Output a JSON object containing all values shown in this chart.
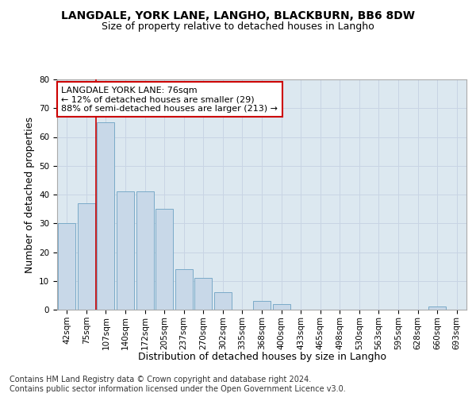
{
  "title": "LANGDALE, YORK LANE, LANGHO, BLACKBURN, BB6 8DW",
  "subtitle": "Size of property relative to detached houses in Langho",
  "xlabel": "Distribution of detached houses by size in Langho",
  "ylabel": "Number of detached properties",
  "categories": [
    "42sqm",
    "75sqm",
    "107sqm",
    "140sqm",
    "172sqm",
    "205sqm",
    "237sqm",
    "270sqm",
    "302sqm",
    "335sqm",
    "368sqm",
    "400sqm",
    "433sqm",
    "465sqm",
    "498sqm",
    "530sqm",
    "563sqm",
    "595sqm",
    "628sqm",
    "660sqm",
    "693sqm"
  ],
  "values": [
    30,
    37,
    65,
    41,
    41,
    35,
    14,
    11,
    6,
    0,
    3,
    2,
    0,
    0,
    0,
    0,
    0,
    0,
    0,
    1,
    0
  ],
  "bar_color": "#c8d8e8",
  "bar_edge_color": "#7aaac8",
  "vline_x_index": 1.5,
  "vline_color": "#cc0000",
  "annotation_text": "LANGDALE YORK LANE: 76sqm\n← 12% of detached houses are smaller (29)\n88% of semi-detached houses are larger (213) →",
  "annotation_box_color": "white",
  "annotation_box_edge_color": "#cc0000",
  "ylim": [
    0,
    80
  ],
  "yticks": [
    0,
    10,
    20,
    30,
    40,
    50,
    60,
    70,
    80
  ],
  "grid_color": "#c8d4e4",
  "background_color": "#dce8f0",
  "footer_text": "Contains HM Land Registry data © Crown copyright and database right 2024.\nContains public sector information licensed under the Open Government Licence v3.0.",
  "title_fontsize": 10,
  "subtitle_fontsize": 9,
  "xlabel_fontsize": 9,
  "ylabel_fontsize": 9,
  "tick_fontsize": 7.5,
  "annotation_fontsize": 8,
  "footer_fontsize": 7
}
